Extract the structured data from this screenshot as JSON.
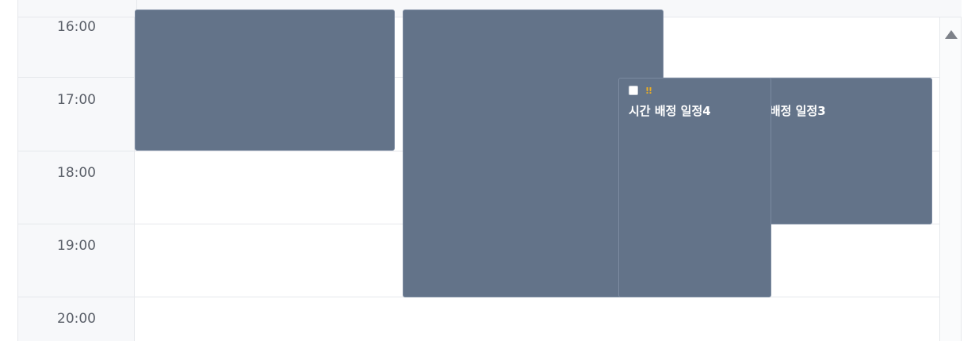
{
  "time_axis": {
    "hours": [
      "16:00",
      "17:00",
      "18:00",
      "19:00",
      "20:00"
    ]
  },
  "events": [
    {
      "title": "",
      "color": "#637389"
    },
    {
      "title": "",
      "color": "#637389"
    },
    {
      "title": "시간 배정 일정3",
      "priority": "!!",
      "color": "#637389"
    },
    {
      "title": "시간 배정 일정4",
      "priority": "!!",
      "color": "#637389"
    }
  ],
  "scrollbar": {
    "up_icon": "triangle-up-icon"
  },
  "colors": {
    "event_fill": "#637389",
    "priority": "#f2b01e",
    "grid_line": "#e6e8ec",
    "gutter_bg": "#f7f8fa",
    "hour_text": "#5a5f68"
  }
}
